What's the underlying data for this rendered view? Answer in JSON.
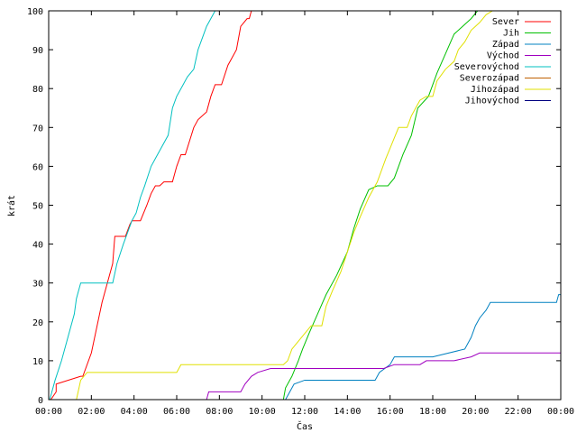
{
  "chart_data": {
    "type": "line",
    "xlabel": "Čas",
    "ylabel": "krát",
    "xlim": [
      0,
      24
    ],
    "ylim": [
      0,
      100
    ],
    "grid": false,
    "legend_position": "top-right",
    "x_tick_labels": [
      "00:00",
      "02:00",
      "04:00",
      "06:00",
      "08:00",
      "10:00",
      "12:00",
      "14:00",
      "16:00",
      "18:00",
      "20:00",
      "22:00",
      "00:00"
    ],
    "x_tick_values": [
      0,
      2,
      4,
      6,
      8,
      10,
      12,
      14,
      16,
      18,
      20,
      22,
      24
    ],
    "y_ticks": [
      0,
      10,
      20,
      30,
      40,
      50,
      60,
      70,
      80,
      90,
      100
    ],
    "series": [
      {
        "name": "Sever",
        "color": "#ff0000",
        "x": [
          0,
          0.1,
          0.35,
          0.35,
          1.5,
          1.6,
          2.0,
          2.5,
          3.0,
          3.1,
          3.6,
          3.8,
          3.9,
          4.3,
          4.6,
          4.8,
          5.0,
          5.2,
          5.4,
          5.8,
          6.0,
          6.2,
          6.4,
          6.8,
          7.0,
          7.4,
          7.6,
          7.8,
          8.1,
          8.4,
          8.6,
          8.8,
          9.0,
          9.3,
          9.4,
          9.5
        ],
        "y": [
          0,
          0,
          2,
          4,
          6,
          6,
          12,
          25,
          35,
          42,
          42,
          45,
          46,
          46,
          50,
          53,
          55,
          55,
          56,
          56,
          60,
          63,
          63,
          70,
          72,
          74,
          78,
          81,
          81,
          86,
          88,
          90,
          96,
          98,
          98,
          100
        ]
      },
      {
        "name": "Jih",
        "color": "#00c000",
        "x": [
          10.8,
          11.0,
          11.1,
          11.4,
          11.7,
          11.9,
          12.2,
          12.6,
          13.0,
          13.5,
          14.0,
          14.3,
          14.6,
          15.0,
          15.4,
          15.9,
          16.2,
          16.6,
          17.0,
          17.3,
          17.8,
          18.2,
          18.6,
          19.0,
          19.4,
          19.8,
          20.1
        ],
        "y": [
          0,
          0,
          3,
          6,
          10,
          13,
          17,
          22,
          27,
          32,
          38,
          44,
          49,
          54,
          55,
          55,
          57,
          63,
          68,
          75,
          78,
          84,
          89,
          94,
          96,
          98,
          100
        ]
      },
      {
        "name": "Západ",
        "color": "#0080c0",
        "x": [
          10.9,
          11.1,
          11.3,
          11.5,
          12.0,
          15.3,
          15.5,
          16.0,
          16.2,
          17.8,
          18.0,
          19.5,
          19.8,
          20.0,
          20.2,
          20.5,
          20.7,
          22.0,
          23.8,
          23.9,
          24.0
        ],
        "y": [
          0,
          0,
          2,
          4,
          5,
          5,
          7,
          9,
          11,
          11,
          11,
          13,
          16,
          19,
          21,
          23,
          25,
          25,
          25,
          27,
          27
        ]
      },
      {
        "name": "Východ",
        "color": "#a000c0",
        "x": [
          7.4,
          7.5,
          9.0,
          9.2,
          9.5,
          9.8,
          10.4,
          10.8,
          14.5,
          15.7,
          16.2,
          17.4,
          17.7,
          18.0,
          19.0,
          19.8,
          20.2,
          21.5,
          24.0
        ],
        "y": [
          0,
          2,
          2,
          4,
          6,
          7,
          8,
          8,
          8,
          8,
          9,
          9,
          10,
          10,
          10,
          11,
          12,
          12,
          12
        ]
      },
      {
        "name": "Severovýchod",
        "color": "#00c0c0",
        "x": [
          0,
          0.05,
          0.3,
          0.6,
          0.8,
          1.0,
          1.2,
          1.3,
          1.5,
          2.0,
          2.5,
          3.0,
          3.2,
          3.5,
          3.9,
          4.1,
          4.3,
          4.5,
          4.8,
          5.0,
          5.2,
          5.6,
          5.8,
          6.0,
          6.2,
          6.5,
          6.8,
          7.0,
          7.2,
          7.4,
          7.6,
          7.8
        ],
        "y": [
          0,
          0,
          5,
          10,
          14,
          18,
          22,
          26,
          30,
          30,
          30,
          30,
          35,
          40,
          46,
          48,
          52,
          55,
          60,
          62,
          64,
          68,
          75,
          78,
          80,
          83,
          85,
          90,
          93,
          96,
          98,
          100
        ]
      },
      {
        "name": "Severozápad",
        "color": "#c06000",
        "x": [],
        "y": []
      },
      {
        "name": "Jihozápad",
        "color": "#e0e000",
        "x": [
          1.3,
          1.5,
          1.8,
          6.0,
          6.2,
          8.0,
          10.0,
          11.0,
          11.2,
          11.4,
          11.7,
          12.0,
          12.3,
          12.8,
          13.0,
          13.3,
          13.7,
          14.0,
          14.3,
          14.6,
          15.0,
          15.4,
          15.8,
          16.1,
          16.4,
          16.6,
          16.8,
          17.0,
          17.4,
          17.7,
          18.0,
          18.2,
          18.6,
          19.0,
          19.2,
          19.5,
          19.8,
          20.0,
          20.2,
          20.5,
          20.8,
          21.0
        ],
        "y": [
          0,
          5,
          7,
          7,
          9,
          9,
          9,
          9,
          10,
          13,
          15,
          17,
          19,
          19,
          24,
          28,
          33,
          38,
          43,
          47,
          52,
          56,
          62,
          66,
          70,
          70,
          70,
          73,
          77,
          78,
          78,
          82,
          85,
          87,
          90,
          92,
          95,
          96,
          97,
          99,
          100,
          100
        ]
      },
      {
        "name": "Jihovýchod",
        "color": "#000080",
        "x": [],
        "y": []
      }
    ]
  }
}
